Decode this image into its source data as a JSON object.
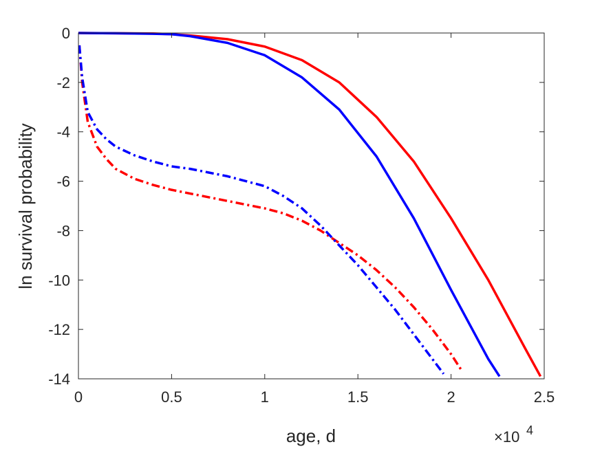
{
  "chart_data": {
    "type": "line",
    "title": "",
    "xlabel": "age, d",
    "ylabel": "ln survival probability",
    "x_exponent_label": "×10",
    "x_exponent": "4",
    "xlim": [
      0,
      2.5
    ],
    "ylim": [
      -14,
      0
    ],
    "x_scale_factor": 10000,
    "xticks": [
      0,
      0.5,
      1,
      1.5,
      2,
      2.5
    ],
    "xtick_labels": [
      "0",
      "0.5",
      "1",
      "1.5",
      "2",
      "2.5"
    ],
    "yticks": [
      0,
      -2,
      -4,
      -6,
      -8,
      -10,
      -12,
      -14
    ],
    "ytick_labels": [
      "0",
      "-2",
      "-4",
      "-6",
      "-8",
      "-10",
      "-12",
      "-14"
    ],
    "grid": false,
    "legend": "none",
    "series": [
      {
        "color": "#ff0000",
        "style": "solid",
        "x": [
          0,
          0.2,
          0.4,
          0.5,
          0.6,
          0.8,
          1.0,
          1.2,
          1.4,
          1.6,
          1.8,
          2.0,
          2.2,
          2.4,
          2.48
        ],
        "y": [
          0,
          -0.01,
          -0.02,
          -0.05,
          -0.1,
          -0.25,
          -0.55,
          -1.1,
          -2.0,
          -3.4,
          -5.2,
          -7.5,
          -10.0,
          -12.8,
          -13.9
        ]
      },
      {
        "color": "#0000ff",
        "style": "solid",
        "x": [
          0,
          0.2,
          0.4,
          0.5,
          0.6,
          0.8,
          1.0,
          1.2,
          1.4,
          1.6,
          1.8,
          2.0,
          2.2,
          2.26
        ],
        "y": [
          0,
          -0.01,
          -0.03,
          -0.05,
          -0.13,
          -0.4,
          -0.9,
          -1.8,
          -3.1,
          -5.0,
          -7.5,
          -10.4,
          -13.2,
          -13.9
        ]
      },
      {
        "color": "#ff0000",
        "style": "dashdot",
        "x": [
          0.005,
          0.02,
          0.05,
          0.1,
          0.15,
          0.2,
          0.3,
          0.4,
          0.5,
          0.6,
          0.7,
          0.8,
          0.9,
          1.0,
          1.1,
          1.2,
          1.3,
          1.4,
          1.5,
          1.6,
          1.7,
          1.8,
          1.9,
          2.0,
          2.06
        ],
        "y": [
          -0.5,
          -2.0,
          -3.6,
          -4.6,
          -5.1,
          -5.5,
          -5.9,
          -6.15,
          -6.35,
          -6.5,
          -6.65,
          -6.8,
          -6.95,
          -7.1,
          -7.3,
          -7.6,
          -8.0,
          -8.5,
          -9.0,
          -9.6,
          -10.3,
          -11.1,
          -12.0,
          -13.0,
          -13.7
        ]
      },
      {
        "color": "#0000ff",
        "style": "dashdot",
        "x": [
          0.005,
          0.02,
          0.05,
          0.1,
          0.15,
          0.2,
          0.3,
          0.4,
          0.5,
          0.6,
          0.7,
          0.8,
          0.9,
          1.0,
          1.1,
          1.2,
          1.3,
          1.4,
          1.5,
          1.6,
          1.7,
          1.8,
          1.9,
          1.96
        ],
        "y": [
          -0.5,
          -1.8,
          -3.2,
          -3.9,
          -4.3,
          -4.6,
          -4.95,
          -5.2,
          -5.4,
          -5.5,
          -5.65,
          -5.8,
          -6.0,
          -6.2,
          -6.6,
          -7.1,
          -7.8,
          -8.6,
          -9.4,
          -10.3,
          -11.2,
          -12.2,
          -13.2,
          -13.8
        ]
      }
    ]
  }
}
